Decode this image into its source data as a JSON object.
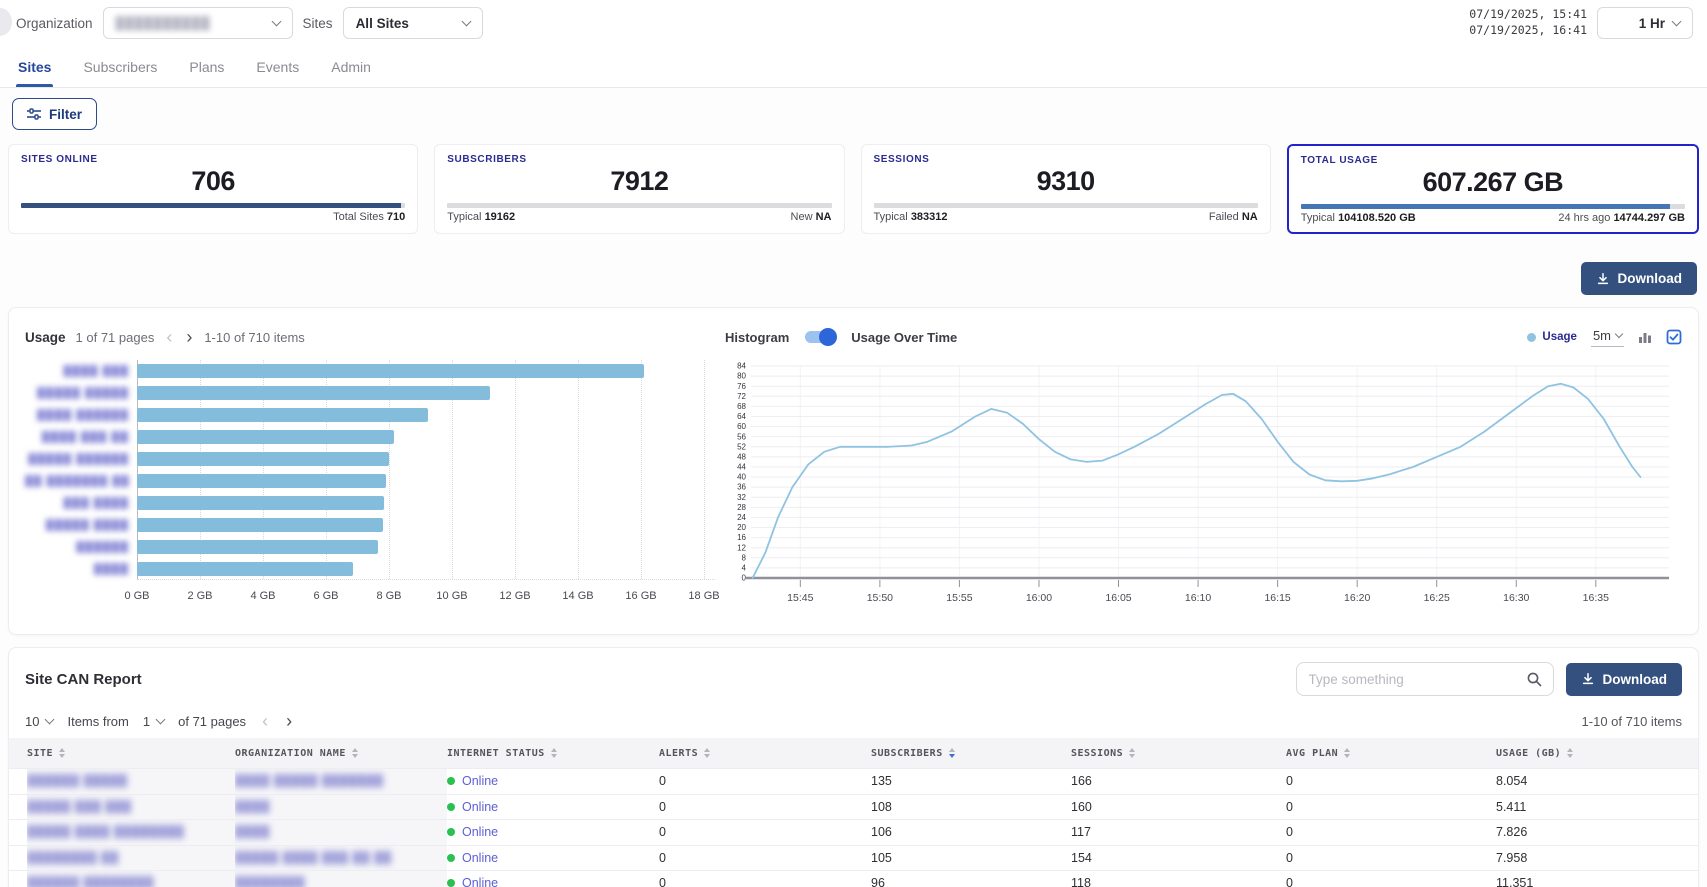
{
  "topbar": {
    "organization_label": "Organization",
    "organization_value_redacted": "██████████",
    "sites_label": "Sites",
    "sites_value": "All Sites",
    "time_start": "07/19/2025, 15:41",
    "time_end": "07/19/2025, 16:41",
    "range_selector": "1 Hr"
  },
  "nav": {
    "tabs": [
      {
        "label": "Sites",
        "active": true
      },
      {
        "label": "Subscribers",
        "active": false
      },
      {
        "label": "Plans",
        "active": false
      },
      {
        "label": "Events",
        "active": false
      },
      {
        "label": "Admin",
        "active": false
      }
    ]
  },
  "filter_button": "Filter",
  "cards": [
    {
      "title": "SITES ONLINE",
      "value": "706",
      "footer_left": "",
      "footer_left_value": "",
      "footer_right": "Total Sites",
      "footer_right_value": "710",
      "progress_pct": 99,
      "progress_color": "#33507e",
      "highlighted": false
    },
    {
      "title": "SUBSCRIBERS",
      "value": "7912",
      "footer_left": "Typical",
      "footer_left_value": "19162",
      "footer_right": "New",
      "footer_right_value": "NA",
      "progress_pct": 0,
      "progress_color": "#dcdcdf",
      "highlighted": false
    },
    {
      "title": "SESSIONS",
      "value": "9310",
      "footer_left": "Typical",
      "footer_left_value": "383312",
      "footer_right": "Failed",
      "footer_right_value": "NA",
      "progress_pct": 0,
      "progress_color": "#dcdcdf",
      "highlighted": false
    },
    {
      "title": "TOTAL USAGE",
      "value": "607.267 GB",
      "footer_left": "Typical",
      "footer_left_value": "104108.520 GB",
      "footer_right": "24 hrs ago",
      "footer_right_value": "14744.297 GB",
      "progress_pct": 96,
      "progress_color": "#4477b3",
      "highlighted": true
    }
  ],
  "download_button": "Download",
  "usage_panel": {
    "title": "Usage",
    "pagination": "1 of 71 pages",
    "items_range": "1-10 of 710 items",
    "histogram_label": "Histogram",
    "toggle_label": "Usage Over Time",
    "legend": "Usage",
    "interval": "5m"
  },
  "chart_data": [
    {
      "type": "bar",
      "title": "Usage",
      "orientation": "horizontal",
      "unit": "GB",
      "categories_redacted": [
        "████ ███",
        "█████ █████",
        "████ ██████",
        "████ ███ ██",
        "█████ ██████",
        "██ ███████ ██",
        "███ ████",
        "█████ ████",
        "██████",
        "████"
      ],
      "values": [
        16.1,
        11.2,
        9.25,
        8.15,
        8.0,
        7.9,
        7.85,
        7.8,
        7.65,
        6.85
      ],
      "xlim": [
        0,
        18
      ],
      "x_ticks": [
        "0 GB",
        "2 GB",
        "4 GB",
        "6 GB",
        "8 GB",
        "10 GB",
        "12 GB",
        "14 GB",
        "16 GB",
        "18 GB"
      ],
      "bar_color": "#84bcdb",
      "grid": "vertical-dotted"
    },
    {
      "type": "line",
      "title": "Usage Over Time",
      "legend_position": "top-right",
      "ylim": [
        0,
        84
      ],
      "y_tick_step": 4,
      "x_range_minutes_since_1540": [
        1.9,
        59.6
      ],
      "x_ticks": [
        {
          "t": 5,
          "label": "15:45"
        },
        {
          "t": 10,
          "label": "15:50"
        },
        {
          "t": 15,
          "label": "15:55"
        },
        {
          "t": 20,
          "label": "16:00"
        },
        {
          "t": 25,
          "label": "16:05"
        },
        {
          "t": 30,
          "label": "16:10"
        },
        {
          "t": 35,
          "label": "16:15"
        },
        {
          "t": 40,
          "label": "16:20"
        },
        {
          "t": 45,
          "label": "16:25"
        },
        {
          "t": 50,
          "label": "16:30"
        },
        {
          "t": 55,
          "label": "16:35"
        }
      ],
      "series": [
        {
          "name": "Usage",
          "points": [
            [
              2.0,
              0
            ],
            [
              2.8,
              10
            ],
            [
              3.6,
              24
            ],
            [
              4.5,
              36
            ],
            [
              5.5,
              45
            ],
            [
              6.5,
              50
            ],
            [
              7.5,
              52
            ],
            [
              9,
              52
            ],
            [
              10.5,
              52
            ],
            [
              12,
              52.5
            ],
            [
              13,
              54
            ],
            [
              14.5,
              58
            ],
            [
              16,
              64
            ],
            [
              17,
              67
            ],
            [
              18,
              65.5
            ],
            [
              19,
              61
            ],
            [
              20,
              55
            ],
            [
              21,
              50
            ],
            [
              22,
              47
            ],
            [
              23,
              46
            ],
            [
              24,
              46.5
            ],
            [
              25,
              49
            ],
            [
              26,
              52
            ],
            [
              27.5,
              57
            ],
            [
              29,
              63
            ],
            [
              30.5,
              69
            ],
            [
              31.5,
              72.5
            ],
            [
              32.2,
              73
            ],
            [
              33,
              70
            ],
            [
              34,
              63
            ],
            [
              35,
              54
            ],
            [
              36,
              46
            ],
            [
              37,
              41
            ],
            [
              38,
              38.7
            ],
            [
              39,
              38.3
            ],
            [
              40,
              38.5
            ],
            [
              41,
              39.5
            ],
            [
              42,
              41
            ],
            [
              43.5,
              44
            ],
            [
              45,
              48
            ],
            [
              46.5,
              52
            ],
            [
              48,
              58
            ],
            [
              49.5,
              65
            ],
            [
              51,
              72
            ],
            [
              52,
              76
            ],
            [
              52.8,
              77
            ],
            [
              53.6,
              75.5
            ],
            [
              54.5,
              71
            ],
            [
              55.5,
              63
            ],
            [
              56.5,
              52
            ],
            [
              57.3,
              44
            ],
            [
              57.8,
              40
            ]
          ]
        }
      ],
      "line_color": "#8fc3e1",
      "grid": "horizontal"
    }
  ],
  "report_panel": {
    "title": "Site CAN Report",
    "search_placeholder": "Type something",
    "download_button": "Download",
    "page_size": "10",
    "items_from_label": "Items from",
    "page_number": "1",
    "pages_label": "of 71 pages",
    "items_range": "1-10 of 710 items",
    "table": {
      "columns": [
        {
          "label": "SITE",
          "sorted": null
        },
        {
          "label": "ORGANIZATION NAME",
          "sorted": null
        },
        {
          "label": "INTERNET STATUS",
          "sorted": null
        },
        {
          "label": "ALERTS",
          "sorted": null
        },
        {
          "label": "SUBSCRIBERS",
          "sorted": "desc"
        },
        {
          "label": "SESSIONS",
          "sorted": null
        },
        {
          "label": "AVG PLAN",
          "sorted": null
        },
        {
          "label": "USAGE (GB)",
          "sorted": null
        }
      ],
      "rows": [
        {
          "site_redacted": "██████ █████",
          "org_redacted": "████ █████ ███████",
          "status": "Online",
          "alerts": "0",
          "subscribers": "135",
          "sessions": "166",
          "avg_plan": "0",
          "usage_gb": "8.054"
        },
        {
          "site_redacted": "█████ ███ ███",
          "org_redacted": "████",
          "status": "Online",
          "alerts": "0",
          "subscribers": "108",
          "sessions": "160",
          "avg_plan": "0",
          "usage_gb": "5.411"
        },
        {
          "site_redacted": "█████ ████ ████████",
          "org_redacted": "████",
          "status": "Online",
          "alerts": "0",
          "subscribers": "106",
          "sessions": "117",
          "avg_plan": "0",
          "usage_gb": "7.826"
        },
        {
          "site_redacted": "████████ ██",
          "org_redacted": "█████ ████ ███ ██ ██",
          "status": "Online",
          "alerts": "0",
          "subscribers": "105",
          "sessions": "154",
          "avg_plan": "0",
          "usage_gb": "7.958"
        },
        {
          "site_redacted": "██████ ████████",
          "org_redacted": "████████",
          "status": "Online",
          "alerts": "0",
          "subscribers": "96",
          "sessions": "118",
          "avg_plan": "0",
          "usage_gb": "11.351"
        }
      ]
    }
  },
  "colors": {
    "accent_navy": "#33507e",
    "card_title": "#2b2b8f",
    "highlight_border": "#2323cc",
    "bar_fill": "#84bcdb",
    "line_stroke": "#8fc3e1",
    "link_purple": "#5d5fd6",
    "online_green": "#2bc052",
    "toggle_blue": "#2c66d9"
  }
}
